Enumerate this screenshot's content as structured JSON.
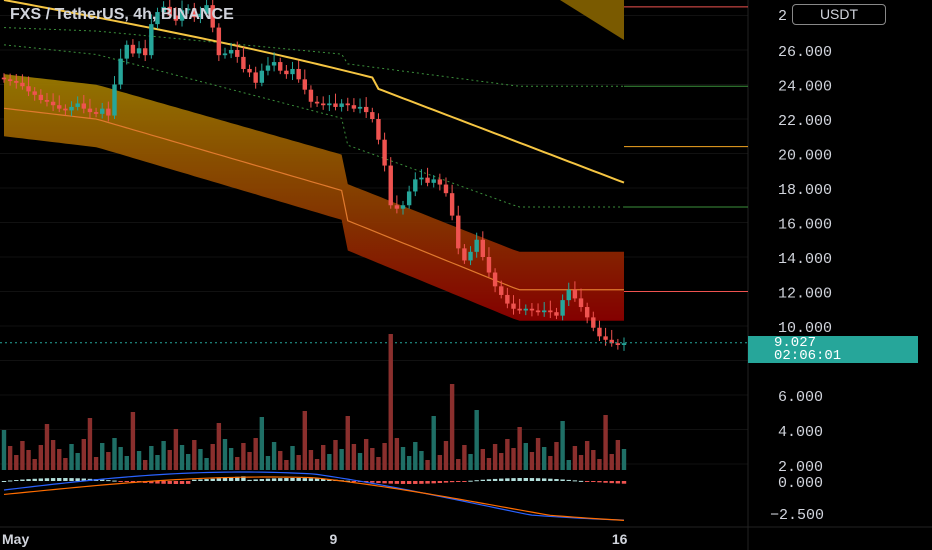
{
  "header": {
    "title": "FXS / TetherUS, 4h, BINANCE",
    "currency": "USDT",
    "top_tick_partial": "2"
  },
  "price_tag": {
    "price": "9.027",
    "countdown": "02:06:01"
  },
  "colors": {
    "up": "#26a69a",
    "down": "#ef5350",
    "ma_long": "#f5c542",
    "band_outer": "#9a7b00",
    "band_inner": "#8b0000",
    "macd_line": "#2962ff",
    "signal_line": "#ff6d00",
    "dotted_green": "#3b8f3b"
  },
  "chart_data": {
    "type": "candlestick",
    "symbol": "FXS/USDT",
    "interval": "4h",
    "exchange": "BINANCE",
    "price_axis": {
      "ticks": [
        26,
        24,
        22,
        20,
        18,
        16,
        14,
        12,
        10,
        6
      ],
      "tick_labels": [
        "26.000",
        "24.000",
        "22.000",
        "20.000",
        "18.000",
        "16.000",
        "14.000",
        "12.000",
        "10.000",
        "6.000"
      ],
      "range": [
        5.5,
        28.5
      ]
    },
    "volume_axis": {
      "tick_labels": [
        "4.000",
        "2.000"
      ]
    },
    "macd_axis": {
      "tick_labels": [
        "0.000",
        "−2.500"
      ]
    },
    "time_axis": {
      "labels": [
        {
          "label": "May",
          "index": 0
        },
        {
          "label": "9",
          "index": 54
        },
        {
          "label": "16",
          "index": 100
        }
      ]
    },
    "current_price": 9.027,
    "series_closes": [
      24.3,
      24.2,
      24.1,
      23.9,
      23.6,
      23.4,
      23.1,
      23.0,
      22.8,
      22.6,
      22.5,
      22.7,
      22.9,
      22.6,
      22.4,
      22.3,
      22.6,
      22.2,
      24.0,
      25.5,
      26.3,
      25.8,
      26.1,
      25.7,
      27.5,
      28.2,
      28.5,
      28.0,
      27.7,
      28.3,
      28.4,
      27.9,
      28.1,
      28.6,
      27.3,
      25.7,
      25.8,
      26.0,
      25.6,
      24.9,
      24.7,
      24.1,
      24.8,
      25.1,
      25.3,
      24.8,
      24.6,
      24.9,
      24.3,
      23.7,
      23.0,
      22.9,
      22.8,
      22.9,
      22.7,
      22.9,
      22.8,
      22.6,
      22.7,
      22.4,
      22.0,
      20.8,
      19.3,
      17.0,
      16.8,
      17.0,
      17.8,
      18.5,
      18.6,
      18.3,
      18.5,
      18.2,
      17.7,
      16.4,
      14.5,
      13.8,
      14.3,
      15.0,
      14.0,
      13.1,
      12.3,
      11.8,
      11.3,
      11.0,
      10.9,
      11.0,
      10.9,
      10.8,
      10.9,
      10.8,
      10.6,
      11.5,
      12.1,
      11.6,
      11.1,
      10.5,
      9.9,
      9.4,
      9.2,
      9.0,
      8.9,
      9.0
    ],
    "overlays": [
      {
        "kind": "moving_average_long",
        "values_start": 28.9,
        "values_end": 20.4
      },
      {
        "kind": "band_upper",
        "values_start": 24.6,
        "values_end": 14.3
      },
      {
        "kind": "band_lower",
        "values_start": 21.0,
        "values_end": 10.3
      },
      {
        "kind": "dotted_envelope",
        "values_start": 27.3,
        "values_end": 23.9
      },
      {
        "kind": "dotted_envelope",
        "values_start": 26.3,
        "values_end": 16.9
      }
    ],
    "horizontal_levels": [
      28.5,
      23.9,
      20.4,
      16.9,
      12.0
    ],
    "volume_max_label": "4.000",
    "macd": {
      "zero_label": "0.000",
      "low_label": "−2.500"
    }
  }
}
